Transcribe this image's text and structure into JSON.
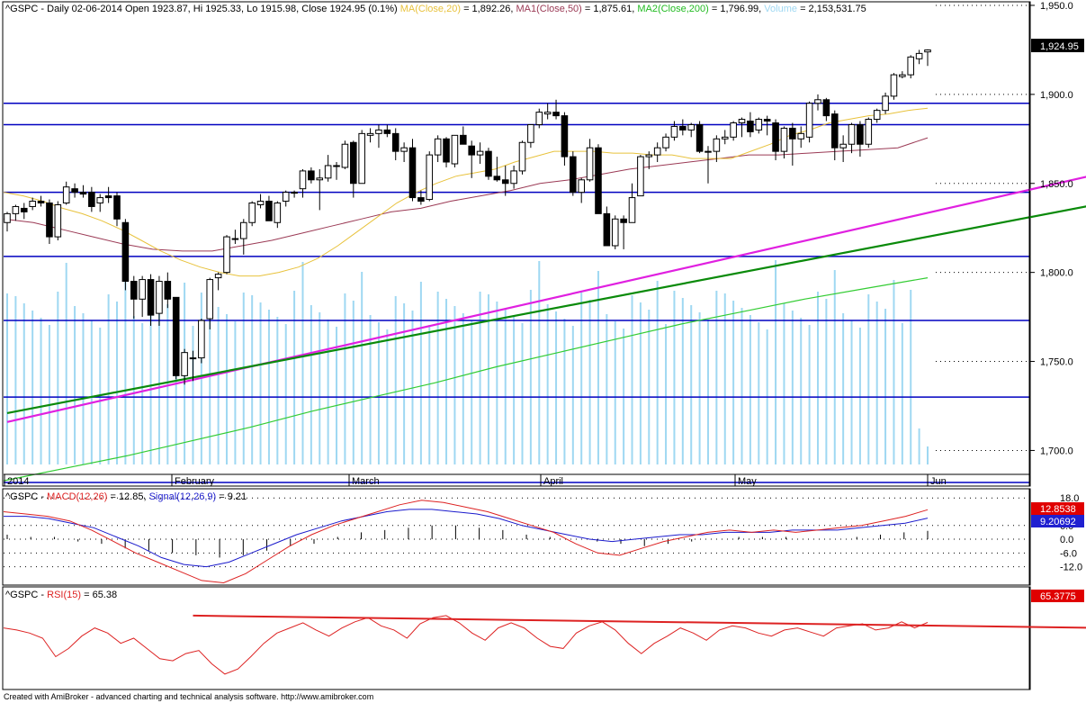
{
  "header": {
    "symbol": "^GSPC",
    "info": "Daily 02-06-2014 Open 1923.87, Hi 1925.33, Lo 1915.98, Close 1924.95 (0.1%)",
    "ma_label": "MA(Close,20)",
    "ma_value": "= 1,892.26,",
    "ma1_label": "MA1(Close,50)",
    "ma1_value": "= 1,875.61,",
    "ma2_label": "MA2(Close,200)",
    "ma2_value": "= 1,796.99,",
    "vol_label": "Volume",
    "vol_value": "= 2,153,531.75"
  },
  "price_badge": "1,924.95",
  "macd_header": {
    "symbol": "^GSPC -",
    "macd_label": "MACD(12,26)",
    "macd_value": "= 12.85,",
    "signal_label": "Signal(12,26,9)",
    "signal_value": "= 9.21"
  },
  "macd_badges": {
    "macd": "12.8538",
    "signal": "9.20692"
  },
  "rsi_header": {
    "symbol": "^GSPC -",
    "rsi_label": "RSI(15)",
    "rsi_value": "= 65.38"
  },
  "rsi_badge": "65.3775",
  "footer": "Created with AmiBroker - advanced charting and technical analysis software. http://www.amibroker.com",
  "colors": {
    "ma20": "#e8c23c",
    "ma50": "#9b3a55",
    "ma200": "#33cc33",
    "volume": "#9fd8f2",
    "hline": "#0000c0",
    "trend_magenta": "#e020e0",
    "trend_green": "#0a8a0a",
    "macd": "#dd2222",
    "signal": "#1a1acc",
    "rsi": "#dd2222",
    "badge_red": "#e00000",
    "badge_blue": "#2020d0"
  },
  "chart_data": [
    {
      "type": "candlestick",
      "title": "^GSPC Daily",
      "x_ticks": [
        "2014",
        "February",
        "March",
        "April",
        "May",
        "Jun"
      ],
      "y_ticks": [
        "1,950.0",
        "1,900.0",
        "1,850.0",
        "1,800.0",
        "1,750.0",
        "1,700.0"
      ],
      "ylim": [
        1680,
        1952
      ],
      "horizontal_lines": [
        1895,
        1883,
        1845,
        1809,
        1773,
        1730,
        1682
      ],
      "trendlines": [
        {
          "name": "magenta",
          "from": [
            0,
            1716
          ],
          "to": [
            142,
            1869
          ]
        },
        {
          "name": "green",
          "from": [
            0,
            1721
          ],
          "to": [
            142,
            1850
          ]
        }
      ],
      "candles": [
        {
          "o": 1828,
          "h": 1834,
          "l": 1823,
          "c": 1833
        },
        {
          "o": 1833,
          "h": 1838,
          "l": 1829,
          "c": 1837
        },
        {
          "o": 1836,
          "h": 1839,
          "l": 1830,
          "c": 1834
        },
        {
          "o": 1837,
          "h": 1842,
          "l": 1835,
          "c": 1840
        },
        {
          "o": 1840,
          "h": 1843,
          "l": 1837,
          "c": 1839
        },
        {
          "o": 1839,
          "h": 1841,
          "l": 1816,
          "c": 1820
        },
        {
          "o": 1820,
          "h": 1840,
          "l": 1818,
          "c": 1838
        },
        {
          "o": 1839,
          "h": 1851,
          "l": 1838,
          "c": 1848
        },
        {
          "o": 1847,
          "h": 1850,
          "l": 1842,
          "c": 1845
        },
        {
          "o": 1845,
          "h": 1849,
          "l": 1842,
          "c": 1844
        },
        {
          "o": 1845,
          "h": 1848,
          "l": 1834,
          "c": 1837
        },
        {
          "o": 1839,
          "h": 1844,
          "l": 1834,
          "c": 1842
        },
        {
          "o": 1843,
          "h": 1848,
          "l": 1839,
          "c": 1842
        },
        {
          "o": 1843,
          "h": 1845,
          "l": 1826,
          "c": 1830
        },
        {
          "o": 1828,
          "h": 1830,
          "l": 1790,
          "c": 1795
        },
        {
          "o": 1795,
          "h": 1798,
          "l": 1774,
          "c": 1785
        },
        {
          "o": 1785,
          "h": 1798,
          "l": 1775,
          "c": 1796
        },
        {
          "o": 1796,
          "h": 1799,
          "l": 1770,
          "c": 1776
        },
        {
          "o": 1777,
          "h": 1798,
          "l": 1770,
          "c": 1795
        },
        {
          "o": 1795,
          "h": 1800,
          "l": 1780,
          "c": 1785
        },
        {
          "o": 1786,
          "h": 1786,
          "l": 1740,
          "c": 1742
        },
        {
          "o": 1742,
          "h": 1757,
          "l": 1737,
          "c": 1755
        },
        {
          "o": 1752,
          "h": 1756,
          "l": 1739,
          "c": 1752
        },
        {
          "o": 1752,
          "h": 1774,
          "l": 1749,
          "c": 1773
        },
        {
          "o": 1774,
          "h": 1797,
          "l": 1768,
          "c": 1796
        },
        {
          "o": 1797,
          "h": 1800,
          "l": 1790,
          "c": 1799
        },
        {
          "o": 1800,
          "h": 1821,
          "l": 1799,
          "c": 1820
        },
        {
          "o": 1819,
          "h": 1824,
          "l": 1816,
          "c": 1819
        },
        {
          "o": 1819,
          "h": 1830,
          "l": 1810,
          "c": 1828
        },
        {
          "o": 1828,
          "h": 1840,
          "l": 1826,
          "c": 1839
        },
        {
          "o": 1838,
          "h": 1844,
          "l": 1836,
          "c": 1840
        },
        {
          "o": 1840,
          "h": 1843,
          "l": 1829,
          "c": 1829
        },
        {
          "o": 1828,
          "h": 1840,
          "l": 1825,
          "c": 1839
        },
        {
          "o": 1840,
          "h": 1846,
          "l": 1837,
          "c": 1845
        },
        {
          "o": 1845,
          "h": 1846,
          "l": 1842,
          "c": 1845
        },
        {
          "o": 1847,
          "h": 1858,
          "l": 1842,
          "c": 1857
        },
        {
          "o": 1857,
          "h": 1859,
          "l": 1850,
          "c": 1852
        },
        {
          "o": 1852,
          "h": 1858,
          "l": 1835,
          "c": 1853
        },
        {
          "o": 1853,
          "h": 1866,
          "l": 1851,
          "c": 1860
        },
        {
          "o": 1860,
          "h": 1862,
          "l": 1852,
          "c": 1860
        },
        {
          "o": 1859,
          "h": 1874,
          "l": 1858,
          "c": 1872
        },
        {
          "o": 1873,
          "h": 1874,
          "l": 1842,
          "c": 1850
        },
        {
          "o": 1850,
          "h": 1880,
          "l": 1850,
          "c": 1878
        },
        {
          "o": 1877,
          "h": 1881,
          "l": 1873,
          "c": 1878
        },
        {
          "o": 1878,
          "h": 1883,
          "l": 1870,
          "c": 1880
        },
        {
          "o": 1880,
          "h": 1883,
          "l": 1876,
          "c": 1878
        },
        {
          "o": 1878,
          "h": 1881,
          "l": 1863,
          "c": 1868
        },
        {
          "o": 1868,
          "h": 1873,
          "l": 1862,
          "c": 1870
        },
        {
          "o": 1870,
          "h": 1875,
          "l": 1840,
          "c": 1842
        },
        {
          "o": 1842,
          "h": 1846,
          "l": 1838,
          "c": 1840
        },
        {
          "o": 1841,
          "h": 1868,
          "l": 1840,
          "c": 1866
        },
        {
          "o": 1866,
          "h": 1877,
          "l": 1862,
          "c": 1875
        },
        {
          "o": 1875,
          "h": 1876,
          "l": 1859,
          "c": 1862
        },
        {
          "o": 1861,
          "h": 1877,
          "l": 1859,
          "c": 1877
        },
        {
          "o": 1877,
          "h": 1882,
          "l": 1872,
          "c": 1872
        },
        {
          "o": 1871,
          "h": 1874,
          "l": 1853,
          "c": 1866
        },
        {
          "o": 1866,
          "h": 1873,
          "l": 1861,
          "c": 1868
        },
        {
          "o": 1868,
          "h": 1870,
          "l": 1852,
          "c": 1854
        },
        {
          "o": 1854,
          "h": 1865,
          "l": 1851,
          "c": 1852
        },
        {
          "o": 1852,
          "h": 1860,
          "l": 1843,
          "c": 1850
        },
        {
          "o": 1850,
          "h": 1860,
          "l": 1847,
          "c": 1857
        },
        {
          "o": 1857,
          "h": 1874,
          "l": 1855,
          "c": 1873
        },
        {
          "o": 1873,
          "h": 1883,
          "l": 1870,
          "c": 1883
        },
        {
          "o": 1883,
          "h": 1892,
          "l": 1881,
          "c": 1890
        },
        {
          "o": 1889,
          "h": 1895,
          "l": 1886,
          "c": 1890
        },
        {
          "o": 1890,
          "h": 1897,
          "l": 1886,
          "c": 1888
        },
        {
          "o": 1888,
          "h": 1890,
          "l": 1860,
          "c": 1865
        },
        {
          "o": 1865,
          "h": 1868,
          "l": 1843,
          "c": 1845
        },
        {
          "o": 1845,
          "h": 1853,
          "l": 1839,
          "c": 1852
        },
        {
          "o": 1852,
          "h": 1875,
          "l": 1851,
          "c": 1870
        },
        {
          "o": 1870,
          "h": 1872,
          "l": 1833,
          "c": 1833
        },
        {
          "o": 1833,
          "h": 1837,
          "l": 1815,
          "c": 1815
        },
        {
          "o": 1815,
          "h": 1832,
          "l": 1813,
          "c": 1830
        },
        {
          "o": 1830,
          "h": 1832,
          "l": 1813,
          "c": 1828
        },
        {
          "o": 1828,
          "h": 1850,
          "l": 1828,
          "c": 1842
        },
        {
          "o": 1843,
          "h": 1866,
          "l": 1843,
          "c": 1865
        },
        {
          "o": 1865,
          "h": 1868,
          "l": 1858,
          "c": 1866
        },
        {
          "o": 1866,
          "h": 1873,
          "l": 1862,
          "c": 1870
        },
        {
          "o": 1870,
          "h": 1878,
          "l": 1868,
          "c": 1876
        },
        {
          "o": 1876,
          "h": 1885,
          "l": 1874,
          "c": 1882
        },
        {
          "o": 1882,
          "h": 1886,
          "l": 1877,
          "c": 1880
        },
        {
          "o": 1880,
          "h": 1884,
          "l": 1876,
          "c": 1883
        },
        {
          "o": 1883,
          "h": 1885,
          "l": 1867,
          "c": 1868
        },
        {
          "o": 1868,
          "h": 1871,
          "l": 1850,
          "c": 1868
        },
        {
          "o": 1868,
          "h": 1877,
          "l": 1862,
          "c": 1875
        },
        {
          "o": 1875,
          "h": 1880,
          "l": 1872,
          "c": 1876
        },
        {
          "o": 1876,
          "h": 1885,
          "l": 1874,
          "c": 1884
        },
        {
          "o": 1884,
          "h": 1887,
          "l": 1876,
          "c": 1886
        },
        {
          "o": 1885,
          "h": 1890,
          "l": 1876,
          "c": 1879
        },
        {
          "o": 1880,
          "h": 1887,
          "l": 1878,
          "c": 1886
        },
        {
          "o": 1886,
          "h": 1888,
          "l": 1877,
          "c": 1885
        },
        {
          "o": 1884,
          "h": 1886,
          "l": 1863,
          "c": 1868
        },
        {
          "o": 1868,
          "h": 1882,
          "l": 1864,
          "c": 1881
        },
        {
          "o": 1881,
          "h": 1884,
          "l": 1860,
          "c": 1875
        },
        {
          "o": 1875,
          "h": 1882,
          "l": 1870,
          "c": 1878
        },
        {
          "o": 1876,
          "h": 1896,
          "l": 1873,
          "c": 1895
        },
        {
          "o": 1895,
          "h": 1900,
          "l": 1891,
          "c": 1897
        },
        {
          "o": 1897,
          "h": 1898,
          "l": 1885,
          "c": 1888
        },
        {
          "o": 1889,
          "h": 1891,
          "l": 1863,
          "c": 1870
        },
        {
          "o": 1870,
          "h": 1877,
          "l": 1862,
          "c": 1872
        },
        {
          "o": 1872,
          "h": 1884,
          "l": 1867,
          "c": 1883
        },
        {
          "o": 1883,
          "h": 1885,
          "l": 1865,
          "c": 1872
        },
        {
          "o": 1872,
          "h": 1887,
          "l": 1870,
          "c": 1886
        },
        {
          "o": 1886,
          "h": 1892,
          "l": 1884,
          "c": 1891
        },
        {
          "o": 1891,
          "h": 1901,
          "l": 1889,
          "c": 1899
        },
        {
          "o": 1899,
          "h": 1912,
          "l": 1897,
          "c": 1911
        },
        {
          "o": 1910,
          "h": 1913,
          "l": 1909,
          "c": 1911
        },
        {
          "o": 1911,
          "h": 1922,
          "l": 1909,
          "c": 1921
        },
        {
          "o": 1920,
          "h": 1925,
          "l": 1917,
          "c": 1923
        },
        {
          "o": 1923.87,
          "h": 1925.33,
          "l": 1915.98,
          "c": 1924.95
        }
      ],
      "ma20": [
        1845,
        1843,
        1840,
        1836,
        1833,
        1829,
        1824,
        1818,
        1812,
        1807,
        1803,
        1800,
        1798,
        1798,
        1800,
        1803,
        1808,
        1815,
        1823,
        1831,
        1839,
        1845,
        1850,
        1854,
        1856,
        1858,
        1862,
        1865,
        1868,
        1868,
        1868,
        1867,
        1867,
        1866,
        1866,
        1864,
        1864,
        1864,
        1868,
        1872,
        1877,
        1880,
        1884,
        1886,
        1888,
        1889,
        1891,
        1892.26
      ],
      "ma50": [
        1830,
        1828,
        1824,
        1820,
        1816,
        1813,
        1812,
        1812,
        1815,
        1818,
        1822,
        1826,
        1830,
        1834,
        1836,
        1840,
        1843,
        1846,
        1850,
        1852,
        1855,
        1858,
        1860,
        1862,
        1864,
        1866,
        1866,
        1867,
        1868,
        1869,
        1870,
        1875.61
      ],
      "ma200": [
        1683,
        1690,
        1697,
        1705,
        1713,
        1722,
        1730,
        1738,
        1747,
        1755,
        1763,
        1771,
        1778,
        1785,
        1791,
        1796.99
      ],
      "series_names": [
        "MA(Close,20)",
        "MA1(Close,50)",
        "MA2(Close,200)",
        "Volume"
      ]
    },
    {
      "type": "line",
      "title": "MACD(12,26)",
      "y_ticks": [
        "18.0",
        "6.0",
        "0.0",
        "-6.0",
        "-12.0"
      ],
      "ylim": [
        -20,
        22
      ],
      "macd": [
        12,
        11,
        10,
        8,
        4,
        -1,
        -6,
        -10,
        -14,
        -18,
        -19,
        -15,
        -9,
        -3,
        2,
        6,
        9,
        12,
        15,
        17,
        16,
        14,
        12,
        9,
        6,
        3,
        -2,
        -6,
        -7,
        -4,
        -1,
        1,
        3,
        4,
        3,
        4,
        3,
        4,
        5,
        6,
        8,
        10,
        12.85
      ],
      "signal": [
        10,
        10,
        9,
        7,
        5,
        1,
        -3,
        -8,
        -11,
        -12,
        -10,
        -6,
        -2,
        2,
        5,
        8,
        10,
        12,
        13,
        13,
        12,
        11,
        9,
        6,
        4,
        2,
        0,
        -1,
        0,
        1,
        2,
        2,
        3,
        3,
        3,
        4,
        4,
        4,
        5,
        6,
        7,
        9.21
      ],
      "histogram_sample": [
        2,
        1,
        1,
        -1,
        -2,
        -4,
        -5,
        -6,
        -7,
        -8,
        -7,
        -5,
        -3,
        -2,
        1,
        3,
        4,
        5,
        6,
        6,
        5,
        4,
        2,
        1,
        0,
        -1,
        -2,
        -3,
        -2,
        -1,
        0,
        1,
        1,
        1,
        0,
        0,
        1,
        2,
        3,
        3.64
      ]
    },
    {
      "type": "line",
      "title": "RSI(15)",
      "ylim": [
        0,
        100
      ],
      "rsi": [
        60,
        58,
        55,
        50,
        32,
        40,
        52,
        60,
        55,
        45,
        50,
        40,
        30,
        28,
        35,
        38,
        25,
        15,
        20,
        32,
        45,
        55,
        60,
        65,
        58,
        52,
        60,
        66,
        70,
        62,
        58,
        50,
        64,
        70,
        72,
        65,
        55,
        48,
        60,
        65,
        60,
        50,
        42,
        40,
        55,
        62,
        66,
        58,
        45,
        35,
        45,
        52,
        60,
        55,
        48,
        58,
        62,
        60,
        55,
        52,
        58,
        60,
        56,
        52,
        60,
        62,
        64,
        58,
        60,
        66,
        60,
        65.38
      ],
      "trendline": {
        "from": [
          22,
          72
        ],
        "to": [
          148,
          58
        ]
      }
    }
  ]
}
